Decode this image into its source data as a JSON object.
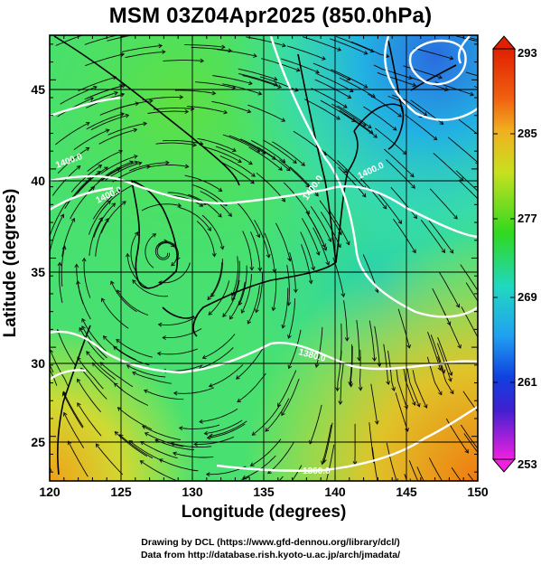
{
  "title": "MSM 03Z04Apr2025 (850.0hPa)",
  "x_axis": {
    "label": "Longitude (degrees)",
    "range": [
      120,
      150
    ],
    "ticks": [
      "120",
      "125",
      "130",
      "135",
      "140",
      "145",
      "150"
    ]
  },
  "y_axis": {
    "label": "Latitude  (degrees)",
    "range": [
      22.5,
      47.5
    ],
    "ticks": [
      "25",
      "30",
      "35",
      "40",
      "45"
    ]
  },
  "colorbar": {
    "range": [
      253,
      293
    ],
    "ticks": [
      "293",
      "285",
      "277",
      "269",
      "261",
      "253"
    ]
  },
  "contour_labels": [
    "1400.0",
    "1400.0",
    "1400.0",
    "1400.0",
    "1380.0",
    "1360.0"
  ],
  "credits": {
    "line1": "Drawing by DCL (https://www.gfd-dennou.org/library/dcl/)",
    "line2": "Data from http://database.rish.kyoto-u.ac.jp/arch/jmadata/"
  }
}
